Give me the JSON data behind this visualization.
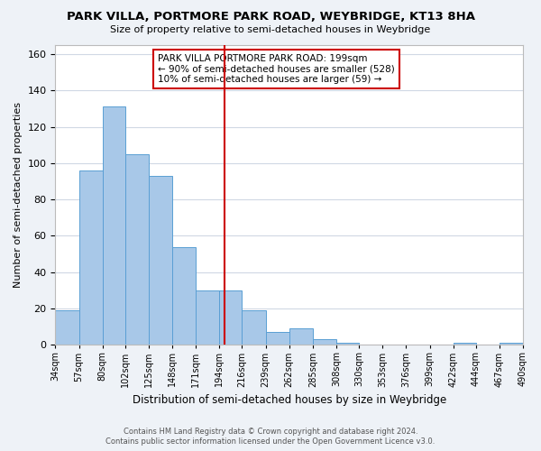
{
  "title": "PARK VILLA, PORTMORE PARK ROAD, WEYBRIDGE, KT13 8HA",
  "subtitle": "Size of property relative to semi-detached houses in Weybridge",
  "xlabel": "Distribution of semi-detached houses by size in Weybridge",
  "ylabel": "Number of semi-detached properties",
  "bin_labels": [
    "34sqm",
    "57sqm",
    "80sqm",
    "102sqm",
    "125sqm",
    "148sqm",
    "171sqm",
    "194sqm",
    "216sqm",
    "239sqm",
    "262sqm",
    "285sqm",
    "308sqm",
    "330sqm",
    "353sqm",
    "376sqm",
    "399sqm",
    "422sqm",
    "444sqm",
    "467sqm",
    "490sqm"
  ],
  "bin_edges": [
    34,
    57,
    80,
    102,
    125,
    148,
    171,
    194,
    216,
    239,
    262,
    285,
    308,
    330,
    353,
    376,
    399,
    422,
    444,
    467,
    490
  ],
  "values": [
    19,
    96,
    131,
    105,
    93,
    54,
    30,
    30,
    19,
    7,
    9,
    3,
    1,
    0,
    0,
    0,
    0,
    1,
    0,
    1
  ],
  "bar_color": "#a8c8e8",
  "bar_edge_color": "#5a9fd4",
  "vline_x": 199,
  "vline_color": "#cc0000",
  "annotation_line1": "PARK VILLA PORTMORE PARK ROAD: 199sqm",
  "annotation_line2": "← 90% of semi-detached houses are smaller (528)",
  "annotation_line3": "10% of semi-detached houses are larger (59) →",
  "ylim": [
    0,
    165
  ],
  "yticks": [
    0,
    20,
    40,
    60,
    80,
    100,
    120,
    140,
    160
  ],
  "footer_line1": "Contains HM Land Registry data © Crown copyright and database right 2024.",
  "footer_line2": "Contains public sector information licensed under the Open Government Licence v3.0.",
  "bg_color": "#eef2f7",
  "plot_bg_color": "#ffffff",
  "grid_color": "#d0d8e4"
}
